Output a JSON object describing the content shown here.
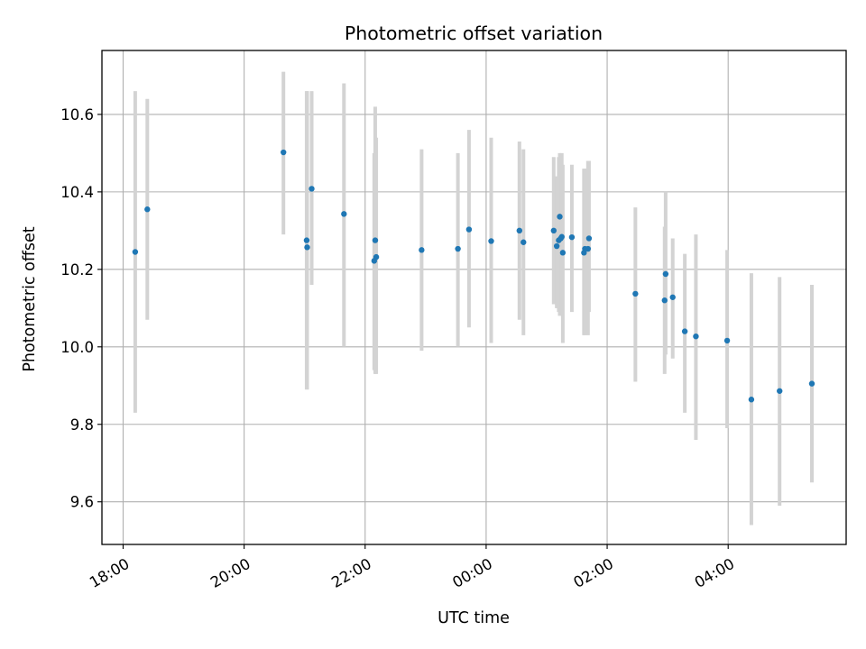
{
  "chart_data": {
    "type": "scatter",
    "title": "Photometric offset variation",
    "xlabel": "UTC time",
    "ylabel": "Photometric offset",
    "grid": true,
    "x_axis_kind": "time",
    "xlim": [
      "2023-01-01T17:39:00",
      "2023-01-02T05:57:00"
    ],
    "ylim": [
      9.49,
      10.765
    ],
    "x_ticks": [
      {
        "t": "2023-01-01T18:00:00",
        "label": "18:00"
      },
      {
        "t": "2023-01-01T20:00:00",
        "label": "20:00"
      },
      {
        "t": "2023-01-01T22:00:00",
        "label": "22:00"
      },
      {
        "t": "2023-01-02T00:00:00",
        "label": "00:00"
      },
      {
        "t": "2023-01-02T02:00:00",
        "label": "02:00"
      },
      {
        "t": "2023-01-02T04:00:00",
        "label": "04:00"
      }
    ],
    "y_ticks": [
      {
        "v": 9.6,
        "label": "9.6"
      },
      {
        "v": 9.8,
        "label": "9.8"
      },
      {
        "v": 10.0,
        "label": "10.0"
      },
      {
        "v": 10.2,
        "label": "10.2"
      },
      {
        "v": 10.4,
        "label": "10.4"
      },
      {
        "v": 10.6,
        "label": "10.6"
      }
    ],
    "colors": {
      "point": "#1f77b4",
      "errorbar": "#d3d3d3",
      "grid": "#b0b0b0"
    },
    "points": [
      {
        "t": "2023-01-01T18:12:00",
        "y": 10.245,
        "lo": 9.83,
        "hi": 10.66
      },
      {
        "t": "2023-01-01T18:24:00",
        "y": 10.355,
        "lo": 10.07,
        "hi": 10.64
      },
      {
        "t": "2023-01-01T20:39:00",
        "y": 10.502,
        "lo": 10.29,
        "hi": 10.71
      },
      {
        "t": "2023-01-01T21:02:00",
        "y": 10.275,
        "lo": 9.89,
        "hi": 10.66
      },
      {
        "t": "2023-01-01T21:02:30",
        "y": 10.257,
        "lo": 9.89,
        "hi": 10.66
      },
      {
        "t": "2023-01-01T21:07:00",
        "y": 10.408,
        "lo": 10.16,
        "hi": 10.66
      },
      {
        "t": "2023-01-01T21:39:00",
        "y": 10.343,
        "lo": 10.0,
        "hi": 10.68
      },
      {
        "t": "2023-01-01T22:09:00",
        "y": 10.222,
        "lo": 9.94,
        "hi": 10.5
      },
      {
        "t": "2023-01-01T22:10:00",
        "y": 10.275,
        "lo": 9.93,
        "hi": 10.62
      },
      {
        "t": "2023-01-01T22:11:00",
        "y": 10.232,
        "lo": 9.93,
        "hi": 10.54
      },
      {
        "t": "2023-01-01T22:56:00",
        "y": 10.25,
        "lo": 9.99,
        "hi": 10.51
      },
      {
        "t": "2023-01-01T23:32:00",
        "y": 10.253,
        "lo": 10.0,
        "hi": 10.5
      },
      {
        "t": "2023-01-01T23:43:00",
        "y": 10.303,
        "lo": 10.05,
        "hi": 10.56
      },
      {
        "t": "2023-01-02T00:05:00",
        "y": 10.273,
        "lo": 10.01,
        "hi": 10.54
      },
      {
        "t": "2023-01-02T00:33:00",
        "y": 10.3,
        "lo": 10.07,
        "hi": 10.53
      },
      {
        "t": "2023-01-02T00:37:00",
        "y": 10.27,
        "lo": 10.03,
        "hi": 10.51
      },
      {
        "t": "2023-01-02T01:07:00",
        "y": 10.3,
        "lo": 10.11,
        "hi": 10.49
      },
      {
        "t": "2023-01-02T01:10:00",
        "y": 10.26,
        "lo": 10.1,
        "hi": 10.44
      },
      {
        "t": "2023-01-02T01:12:00",
        "y": 10.275,
        "lo": 10.09,
        "hi": 10.49
      },
      {
        "t": "2023-01-02T01:13:00",
        "y": 10.336,
        "lo": 10.08,
        "hi": 10.5
      },
      {
        "t": "2023-01-02T01:14:00",
        "y": 10.28,
        "lo": 10.09,
        "hi": 10.47
      },
      {
        "t": "2023-01-02T01:15:00",
        "y": 10.284,
        "lo": 10.09,
        "hi": 10.5
      },
      {
        "t": "2023-01-02T01:16:00",
        "y": 10.243,
        "lo": 10.01,
        "hi": 10.47
      },
      {
        "t": "2023-01-02T01:25:00",
        "y": 10.283,
        "lo": 10.09,
        "hi": 10.47
      },
      {
        "t": "2023-01-02T01:37:00",
        "y": 10.243,
        "lo": 10.03,
        "hi": 10.46
      },
      {
        "t": "2023-01-02T01:38:00",
        "y": 10.253,
        "lo": 10.03,
        "hi": 10.46
      },
      {
        "t": "2023-01-02T01:41:00",
        "y": 10.253,
        "lo": 10.03,
        "hi": 10.48
      },
      {
        "t": "2023-01-02T01:42:00",
        "y": 10.28,
        "lo": 10.09,
        "hi": 10.48
      },
      {
        "t": "2023-01-02T02:28:00",
        "y": 10.137,
        "lo": 9.91,
        "hi": 10.36
      },
      {
        "t": "2023-01-02T02:57:00",
        "y": 10.12,
        "lo": 9.93,
        "hi": 10.31
      },
      {
        "t": "2023-01-02T02:58:00",
        "y": 10.188,
        "lo": 9.98,
        "hi": 10.4
      },
      {
        "t": "2023-01-02T03:05:00",
        "y": 10.128,
        "lo": 9.97,
        "hi": 10.28
      },
      {
        "t": "2023-01-02T03:17:00",
        "y": 10.04,
        "lo": 9.83,
        "hi": 10.24
      },
      {
        "t": "2023-01-02T03:28:00",
        "y": 10.027,
        "lo": 9.76,
        "hi": 10.29
      },
      {
        "t": "2023-01-02T03:59:00",
        "y": 10.016,
        "lo": 9.79,
        "hi": 10.25
      },
      {
        "t": "2023-01-02T04:23:00",
        "y": 9.864,
        "lo": 9.54,
        "hi": 10.19
      },
      {
        "t": "2023-01-02T04:51:00",
        "y": 9.886,
        "lo": 9.59,
        "hi": 10.18
      },
      {
        "t": "2023-01-02T05:23:00",
        "y": 9.905,
        "lo": 9.65,
        "hi": 10.16
      }
    ]
  }
}
